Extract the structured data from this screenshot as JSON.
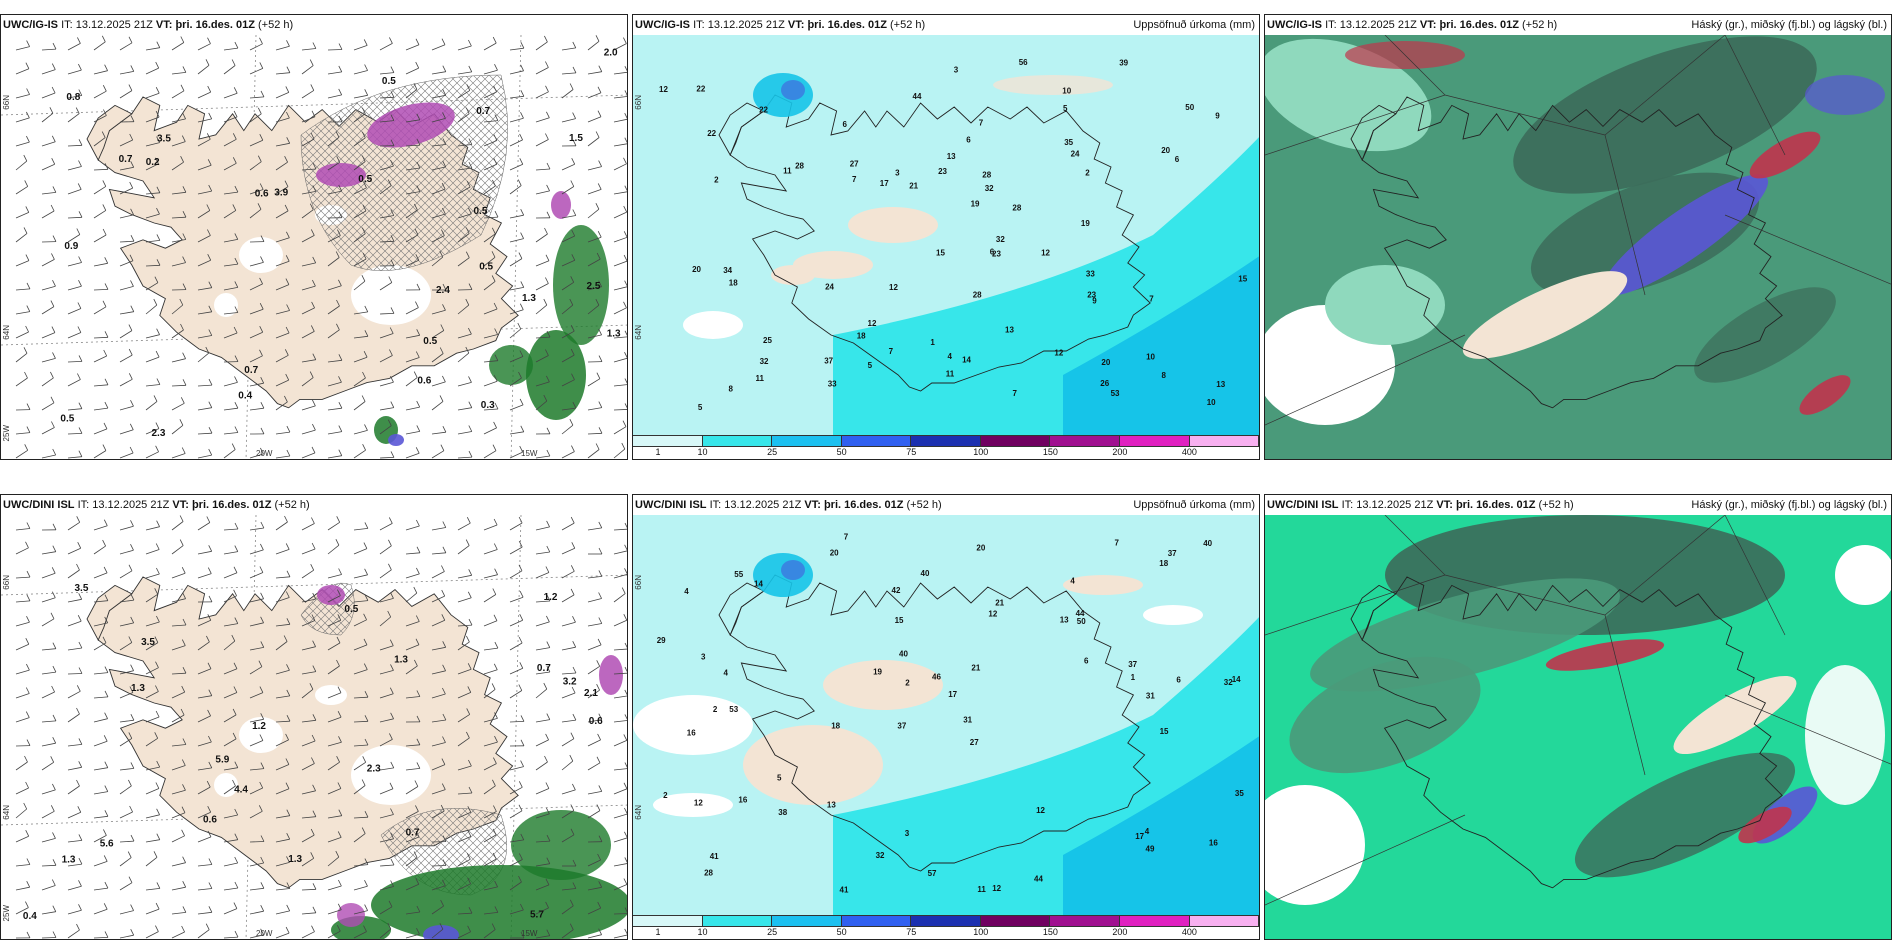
{
  "colors": {
    "land": "#f3e4d4",
    "precip_bg": "#b9f3f3",
    "precip_mid": "#37e6ea",
    "precip_high": "#16c4e8",
    "cloud_dark": "#3c6c5a",
    "cloud_mid": "#4a9a7a",
    "cloud_light": "#8fd9bd",
    "cloud_bright": "#23d89a",
    "cloud_blue": "#5a56d6",
    "cloud_red": "#c0344c",
    "green_precip": "#1d7a2a",
    "purple": "#b04cb4"
  },
  "panels": [
    {
      "row": "top",
      "col": "left",
      "model": "UWC/IG-IS",
      "it_label": "IT:",
      "it_value": "13.12.2025 21Z",
      "vt_label": "VT:",
      "vt_value": "þri. 16.des. 01Z",
      "lead": "(+52 h)",
      "right_title": "",
      "axis": {
        "lat1": "66N",
        "lat2": "64N",
        "lat3": "25W",
        "lon1": "20W",
        "lon2": "15W"
      },
      "numbers": [
        "0.5",
        "0.5",
        "0.5",
        "0.3",
        "0.2",
        "0.4",
        "0.6",
        "0.6",
        "0.7",
        "0.5",
        "0.5",
        "0.5",
        "3.9",
        "0.9",
        "2.3",
        "2.5",
        "3.5",
        "1.5",
        "2.4",
        "0.7",
        "0.8",
        "1.3",
        "1.3",
        "2.0",
        "0.7"
      ]
    },
    {
      "row": "top",
      "col": "middle",
      "model": "UWC/IG-IS",
      "it_label": "IT:",
      "it_value": "13.12.2025 21Z",
      "vt_label": "VT:",
      "vt_value": "þri. 16.des. 01Z",
      "lead": "(+52 h)",
      "right_title": "Uppsöfnuð úrkoma (mm)",
      "axis": {
        "lat1": "66N",
        "lat2": "64N"
      },
      "numbers": [
        "8",
        "7",
        "32",
        "28",
        "44",
        "56",
        "10",
        "10",
        "20",
        "18",
        "10",
        "7",
        "7",
        "3",
        "12",
        "27",
        "23",
        "18",
        "15",
        "9",
        "12",
        "11",
        "11",
        "12",
        "9",
        "5",
        "3",
        "6",
        "6",
        "13",
        "8",
        "12",
        "7",
        "5",
        "6",
        "7",
        "4",
        "2",
        "2",
        "1",
        "11",
        "12",
        "6",
        "5",
        "19",
        "17",
        "13",
        "14",
        "15",
        "13",
        "22",
        "23",
        "22",
        "26",
        "25",
        "22",
        "20",
        "21",
        "28",
        "33",
        "32",
        "35",
        "24",
        "50",
        "53",
        "34",
        "39",
        "32",
        "33",
        "28",
        "28",
        "23",
        "19",
        "24",
        "37",
        "20"
      ],
      "legend": [
        "1",
        "10",
        "25",
        "50",
        "75",
        "100",
        "150",
        "200",
        "400"
      ]
    },
    {
      "row": "top",
      "col": "right",
      "model": "UWC/IG-IS",
      "it_label": "IT:",
      "it_value": "13.12.2025 21Z",
      "vt_label": "VT:",
      "vt_value": "þri. 16.des. 01Z",
      "lead": "(+52 h)",
      "right_title": "Háský (gr.), miðský (fj.bl.) og lágský (bl.)"
    },
    {
      "row": "bottom",
      "col": "left",
      "model": "UWC/DINI ISL",
      "it_label": "IT:",
      "it_value": "13.12.2025 21Z",
      "vt_label": "VT:",
      "vt_value": "þri. 16.des. 01Z",
      "lead": "(+52 h)",
      "right_title": "",
      "axis": {
        "lat1": "66N",
        "lat2": "64N",
        "lat3": "25W",
        "lon1": "20W",
        "lon2": "15W"
      },
      "numbers": [
        "0.6",
        "0.5",
        "1.3",
        "0.7",
        "0.6",
        "0.7",
        "1.2",
        "1.2",
        "1.3",
        "0.4",
        "5.6",
        "4.4",
        "5.9",
        "5.7",
        "3.5",
        "3.5",
        "3.2",
        "2.3",
        "2.1",
        "1.3",
        "1.3"
      ]
    },
    {
      "row": "bottom",
      "col": "middle",
      "model": "UWC/DINI ISL",
      "it_label": "IT:",
      "it_value": "13.12.2025 21Z",
      "vt_label": "VT:",
      "vt_value": "þri. 16.des. 01Z",
      "lead": "(+52 h)",
      "right_title": "Uppsöfnuð úrkoma (mm)",
      "axis": {
        "lat1": "66N",
        "lat2": "64N"
      },
      "numbers": [
        "7",
        "4",
        "32",
        "37",
        "27",
        "53",
        "4",
        "13",
        "16",
        "12",
        "17",
        "28",
        "20",
        "18",
        "11",
        "12",
        "3",
        "7",
        "6",
        "5",
        "4",
        "2",
        "14",
        "6",
        "2",
        "3",
        "2",
        "1",
        "4",
        "12",
        "17",
        "21",
        "16",
        "19",
        "12",
        "35",
        "37",
        "32",
        "40",
        "40",
        "41",
        "41",
        "44",
        "55",
        "57",
        "50",
        "49",
        "44",
        "29",
        "31",
        "42",
        "31",
        "21",
        "18",
        "20",
        "38",
        "40",
        "46",
        "37",
        "15",
        "16",
        "15",
        "14",
        "13"
      ],
      "legend": [
        "1",
        "10",
        "25",
        "50",
        "75",
        "100",
        "150",
        "200",
        "400"
      ]
    },
    {
      "row": "bottom",
      "col": "right",
      "model": "UWC/DINI ISL",
      "it_label": "IT:",
      "it_value": "13.12.2025 21Z",
      "vt_label": "VT:",
      "vt_value": "þri. 16.des. 01Z",
      "lead": "(+52 h)",
      "right_title": "Háský (gr.), miðský (fj.bl.) og lágský (bl.)"
    }
  ]
}
